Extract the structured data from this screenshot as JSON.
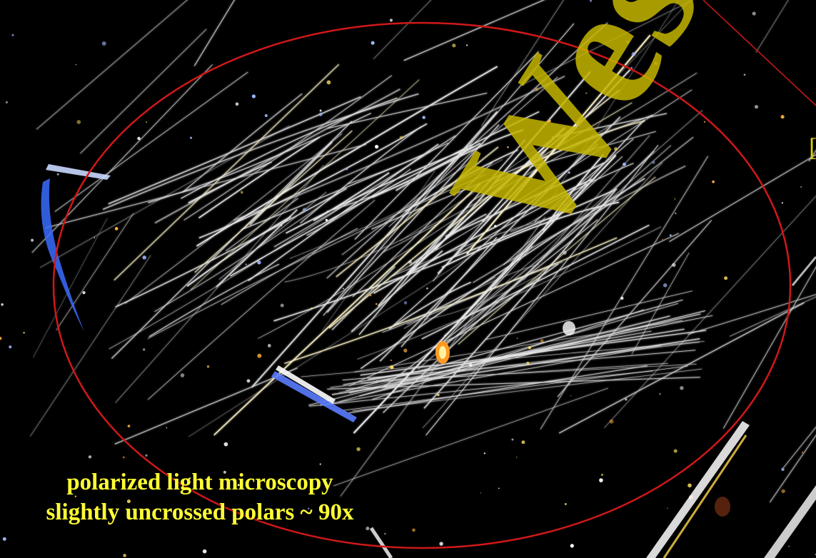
{
  "image": {
    "subject": "",
    "caption_line1": "polarized light microscopy",
    "caption_line2": "slightly uncrossed polars ~ 90x",
    "watermark": "Wes",
    "edge_mark": "[",
    "colors": {
      "background": "#000000",
      "caption": "#ffff33",
      "watermark": "#c6b700",
      "annotation_ellipse": "#d01818",
      "fibers": "#e8e8e8",
      "birefringence_blue": "#3a6cff"
    }
  }
}
